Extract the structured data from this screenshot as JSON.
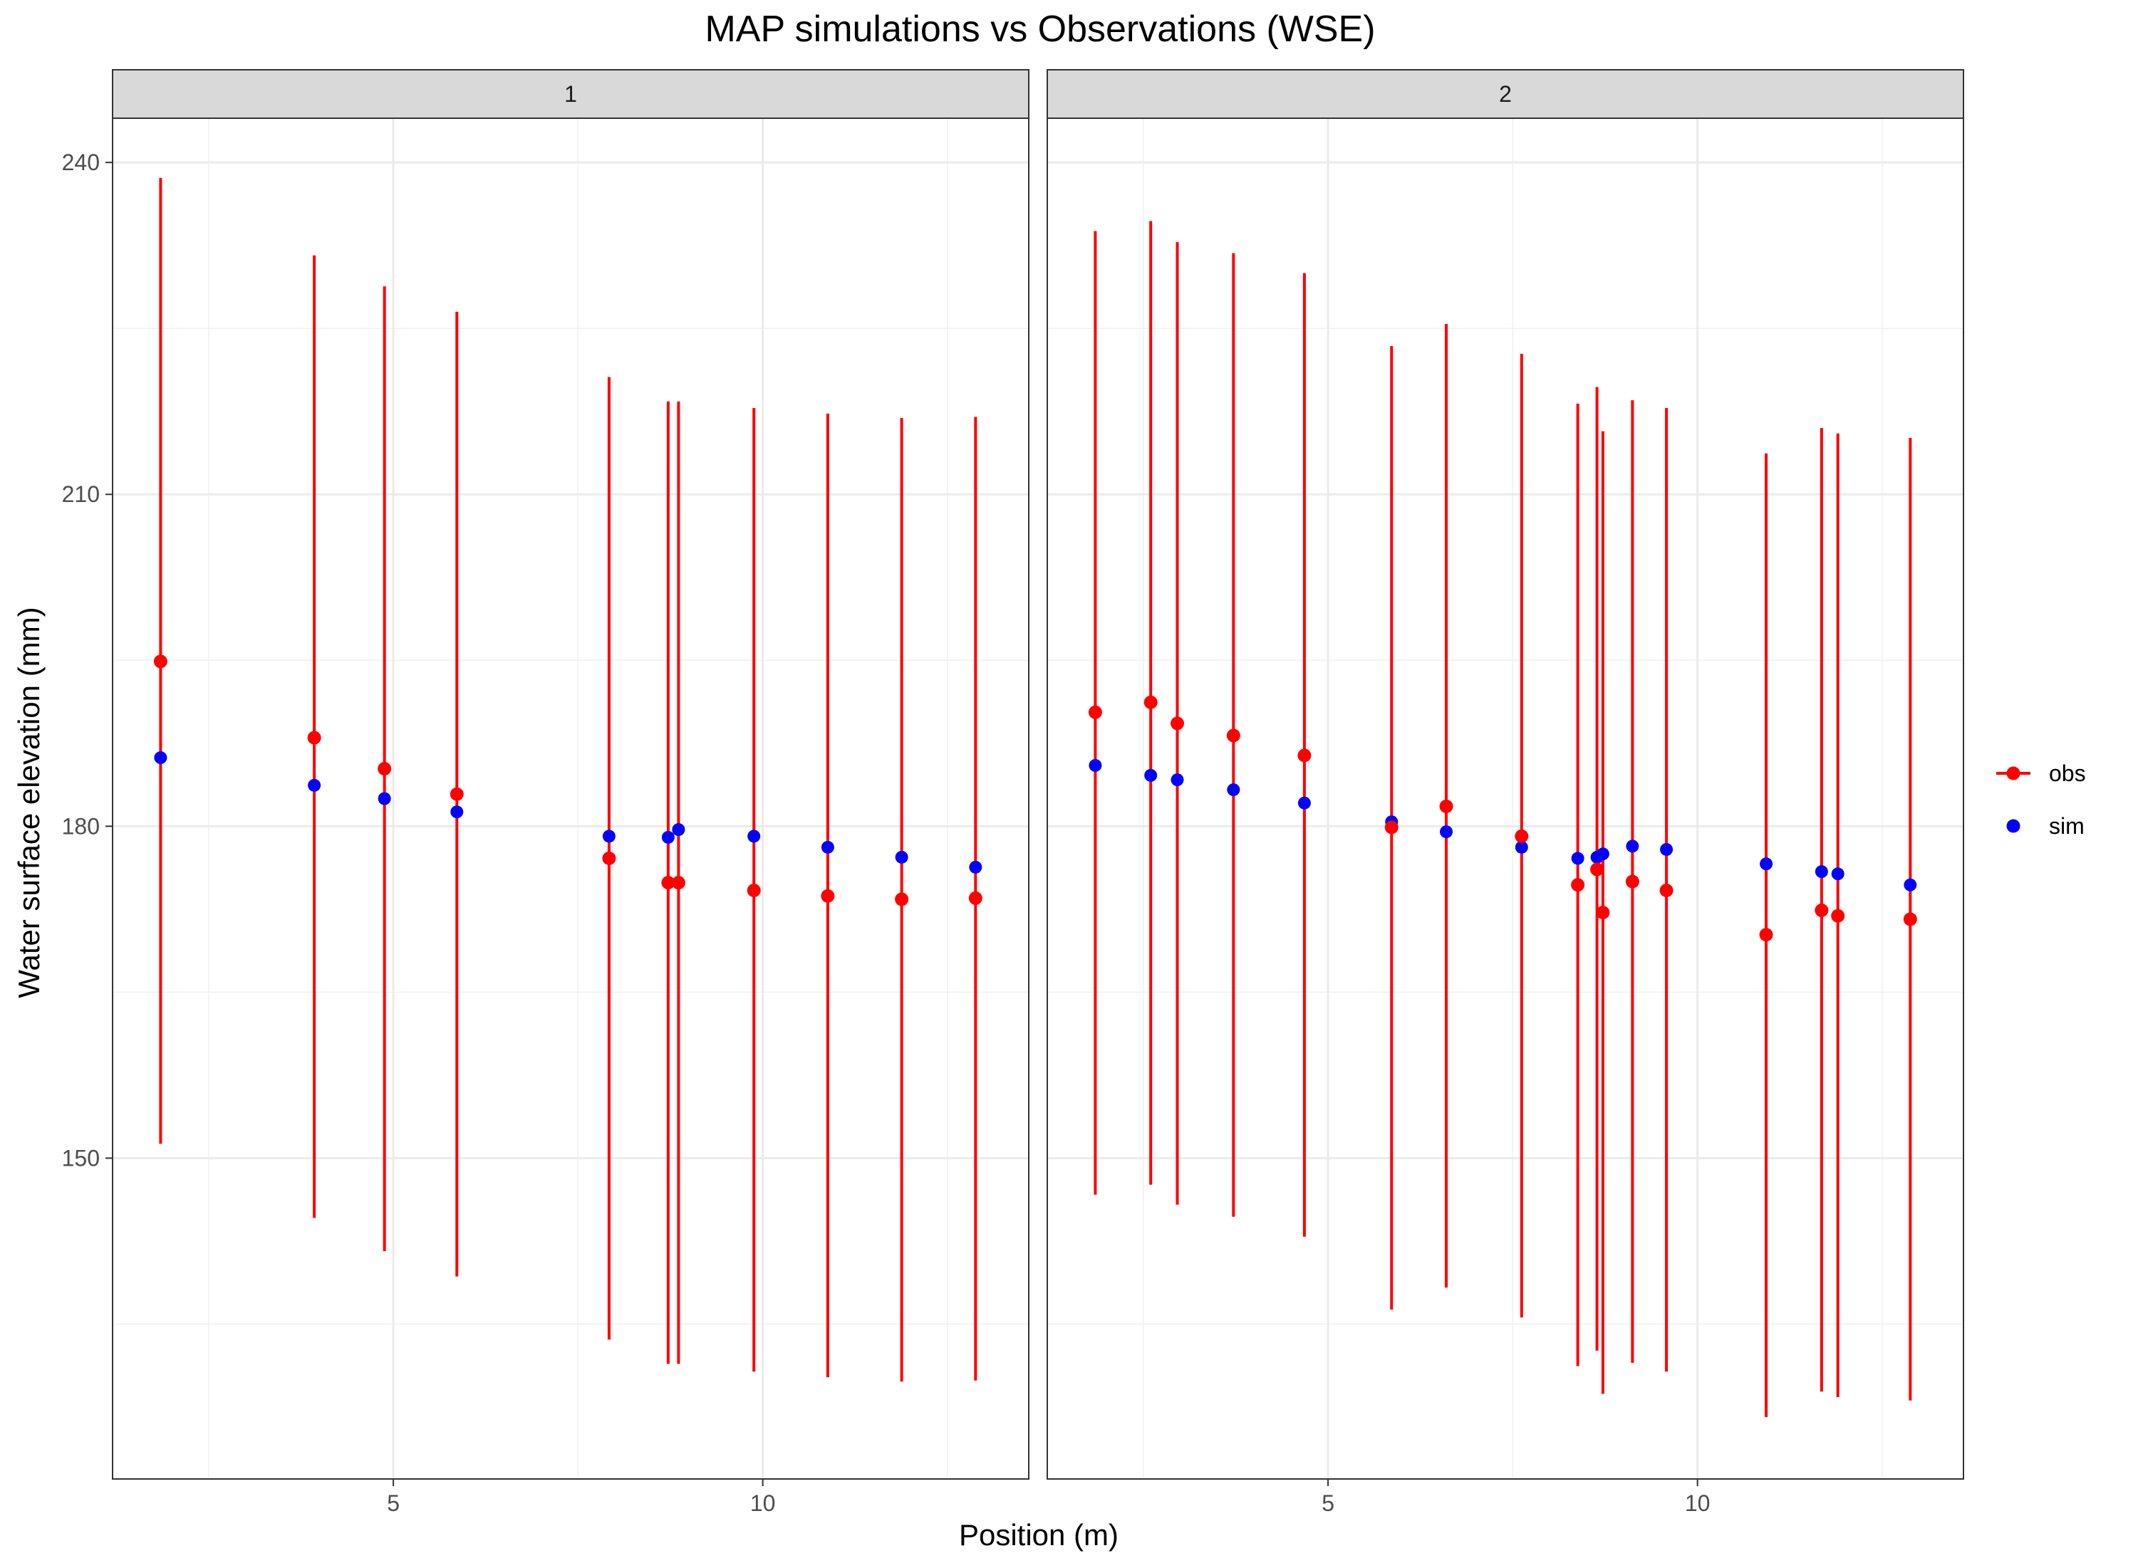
{
  "chart_data": {
    "type": "scatter",
    "title": "MAP simulations vs Observations (WSE)",
    "xlabel": "Position (m)",
    "ylabel": "Water surface elevation (mm)",
    "xlim": [
      1.2,
      13.6
    ],
    "ylim": [
      121,
      244
    ],
    "x_ticks": [
      5,
      10
    ],
    "y_ticks": [
      150,
      180,
      210,
      240
    ],
    "grid": true,
    "legend_position": "right",
    "colors": {
      "obs": "#ff0000",
      "sim": "#0000ff"
    },
    "legend": [
      {
        "key": "obs",
        "label": "obs"
      },
      {
        "key": "sim",
        "label": "sim"
      }
    ],
    "panels": [
      {
        "label": "1",
        "points": [
          {
            "x": 1.85,
            "obs": 194.9,
            "obs_low": 151.3,
            "obs_high": 238.6,
            "sim": 186.2
          },
          {
            "x": 3.93,
            "obs": 188.0,
            "obs_low": 144.6,
            "obs_high": 231.6,
            "sim": 183.7
          },
          {
            "x": 4.88,
            "obs": 185.2,
            "obs_low": 141.6,
            "obs_high": 228.8,
            "sim": 182.5
          },
          {
            "x": 5.86,
            "obs": 182.9,
            "obs_low": 139.3,
            "obs_high": 226.5,
            "sim": 181.3
          },
          {
            "x": 7.92,
            "obs": 177.1,
            "obs_low": 133.6,
            "obs_high": 220.6,
            "sim": 179.1
          },
          {
            "x": 8.72,
            "obs": 174.9,
            "obs_low": 131.4,
            "obs_high": 218.4,
            "sim": 179.0
          },
          {
            "x": 8.86,
            "obs": 174.9,
            "obs_low": 131.4,
            "obs_high": 218.4,
            "sim": 179.7
          },
          {
            "x": 9.88,
            "obs": 174.2,
            "obs_low": 130.7,
            "obs_high": 217.8,
            "sim": 179.1
          },
          {
            "x": 10.88,
            "obs": 173.7,
            "obs_low": 130.2,
            "obs_high": 217.3,
            "sim": 178.1
          },
          {
            "x": 11.88,
            "obs": 173.4,
            "obs_low": 129.8,
            "obs_high": 216.9,
            "sim": 177.2
          },
          {
            "x": 12.88,
            "obs": 173.5,
            "obs_low": 129.9,
            "obs_high": 217.0,
            "sim": 176.3
          }
        ]
      },
      {
        "label": "2",
        "points": [
          {
            "x": 1.85,
            "obs": 190.3,
            "obs_low": 146.7,
            "obs_high": 233.8,
            "sim": 185.5
          },
          {
            "x": 2.6,
            "obs": 191.2,
            "obs_low": 147.6,
            "obs_high": 234.7,
            "sim": 184.6
          },
          {
            "x": 2.96,
            "obs": 189.3,
            "obs_low": 145.8,
            "obs_high": 232.8,
            "sim": 184.2
          },
          {
            "x": 3.72,
            "obs": 188.2,
            "obs_low": 144.7,
            "obs_high": 231.8,
            "sim": 183.3
          },
          {
            "x": 4.68,
            "obs": 186.4,
            "obs_low": 142.9,
            "obs_high": 230.0,
            "sim": 182.1
          },
          {
            "x": 5.86,
            "obs": 179.9,
            "obs_low": 136.3,
            "obs_high": 223.4,
            "sim": 180.4
          },
          {
            "x": 6.6,
            "obs": 181.8,
            "obs_low": 138.3,
            "obs_high": 225.4,
            "sim": 179.5
          },
          {
            "x": 7.62,
            "obs": 179.1,
            "obs_low": 135.6,
            "obs_high": 222.7,
            "sim": 178.1
          },
          {
            "x": 8.38,
            "obs": 174.7,
            "obs_low": 131.2,
            "obs_high": 218.2,
            "sim": 177.1
          },
          {
            "x": 8.64,
            "obs": 176.1,
            "obs_low": 132.6,
            "obs_high": 219.7,
            "sim": 177.2
          },
          {
            "x": 8.72,
            "obs": 172.2,
            "obs_low": 128.7,
            "obs_high": 215.7,
            "sim": 177.5
          },
          {
            "x": 9.12,
            "obs": 175.0,
            "obs_low": 131.5,
            "obs_high": 218.5,
            "sim": 178.2
          },
          {
            "x": 9.58,
            "obs": 174.2,
            "obs_low": 130.7,
            "obs_high": 217.8,
            "sim": 177.9
          },
          {
            "x": 10.93,
            "obs": 170.2,
            "obs_low": 126.6,
            "obs_high": 213.7,
            "sim": 176.6
          },
          {
            "x": 11.68,
            "obs": 172.4,
            "obs_low": 128.9,
            "obs_high": 216.0,
            "sim": 175.9
          },
          {
            "x": 11.9,
            "obs": 171.9,
            "obs_low": 128.4,
            "obs_high": 215.5,
            "sim": 175.7
          },
          {
            "x": 12.88,
            "obs": 171.6,
            "obs_low": 128.1,
            "obs_high": 215.1,
            "sim": 174.7
          }
        ]
      }
    ]
  }
}
